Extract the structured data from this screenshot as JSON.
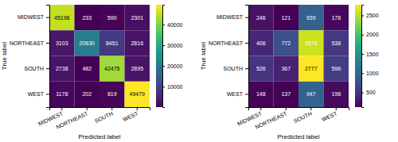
{
  "chart_data": [
    {
      "type": "heatmap",
      "categories": [
        "MIDWEST",
        "NORTHEAST",
        "SOUTH",
        "WEST"
      ],
      "y_categories": [
        "MIDWEST",
        "NORTHEAST",
        "SOUTH",
        "WEST"
      ],
      "values": [
        [
          45198,
          233,
          590,
          2301
        ],
        [
          3103,
          20630,
          8451,
          2816
        ],
        [
          2738,
          482,
          42475,
          2895
        ],
        [
          1178,
          202,
          819,
          49479
        ]
      ],
      "xlabel": "Predicted label",
      "ylabel": "True label",
      "color": "viridis",
      "colorbar_lim": [
        202,
        49479
      ],
      "colorbar_ticks": [
        10000,
        20000,
        30000,
        40000
      ],
      "data_labels": true
    },
    {
      "type": "heatmap",
      "categories": [
        "MIDWEST",
        "NORTHEAST",
        "SOUTH",
        "WEST"
      ],
      "y_categories": [
        "MIDWEST",
        "NORTHEAST",
        "SOUTH",
        "WEST"
      ],
      "values": [
        [
          246,
          121,
          939,
          178
        ],
        [
          406,
          772,
          2579,
          538
        ],
        [
          526,
          367,
          2777,
          596
        ],
        [
          148,
          137,
          947,
          198
        ]
      ],
      "xlabel": "Predicted label",
      "ylabel": "True label",
      "color": "viridis",
      "colorbar_lim": [
        121,
        2777
      ],
      "colorbar_ticks": [
        500,
        1000,
        1500,
        2000,
        2500
      ],
      "data_labels": true
    }
  ]
}
